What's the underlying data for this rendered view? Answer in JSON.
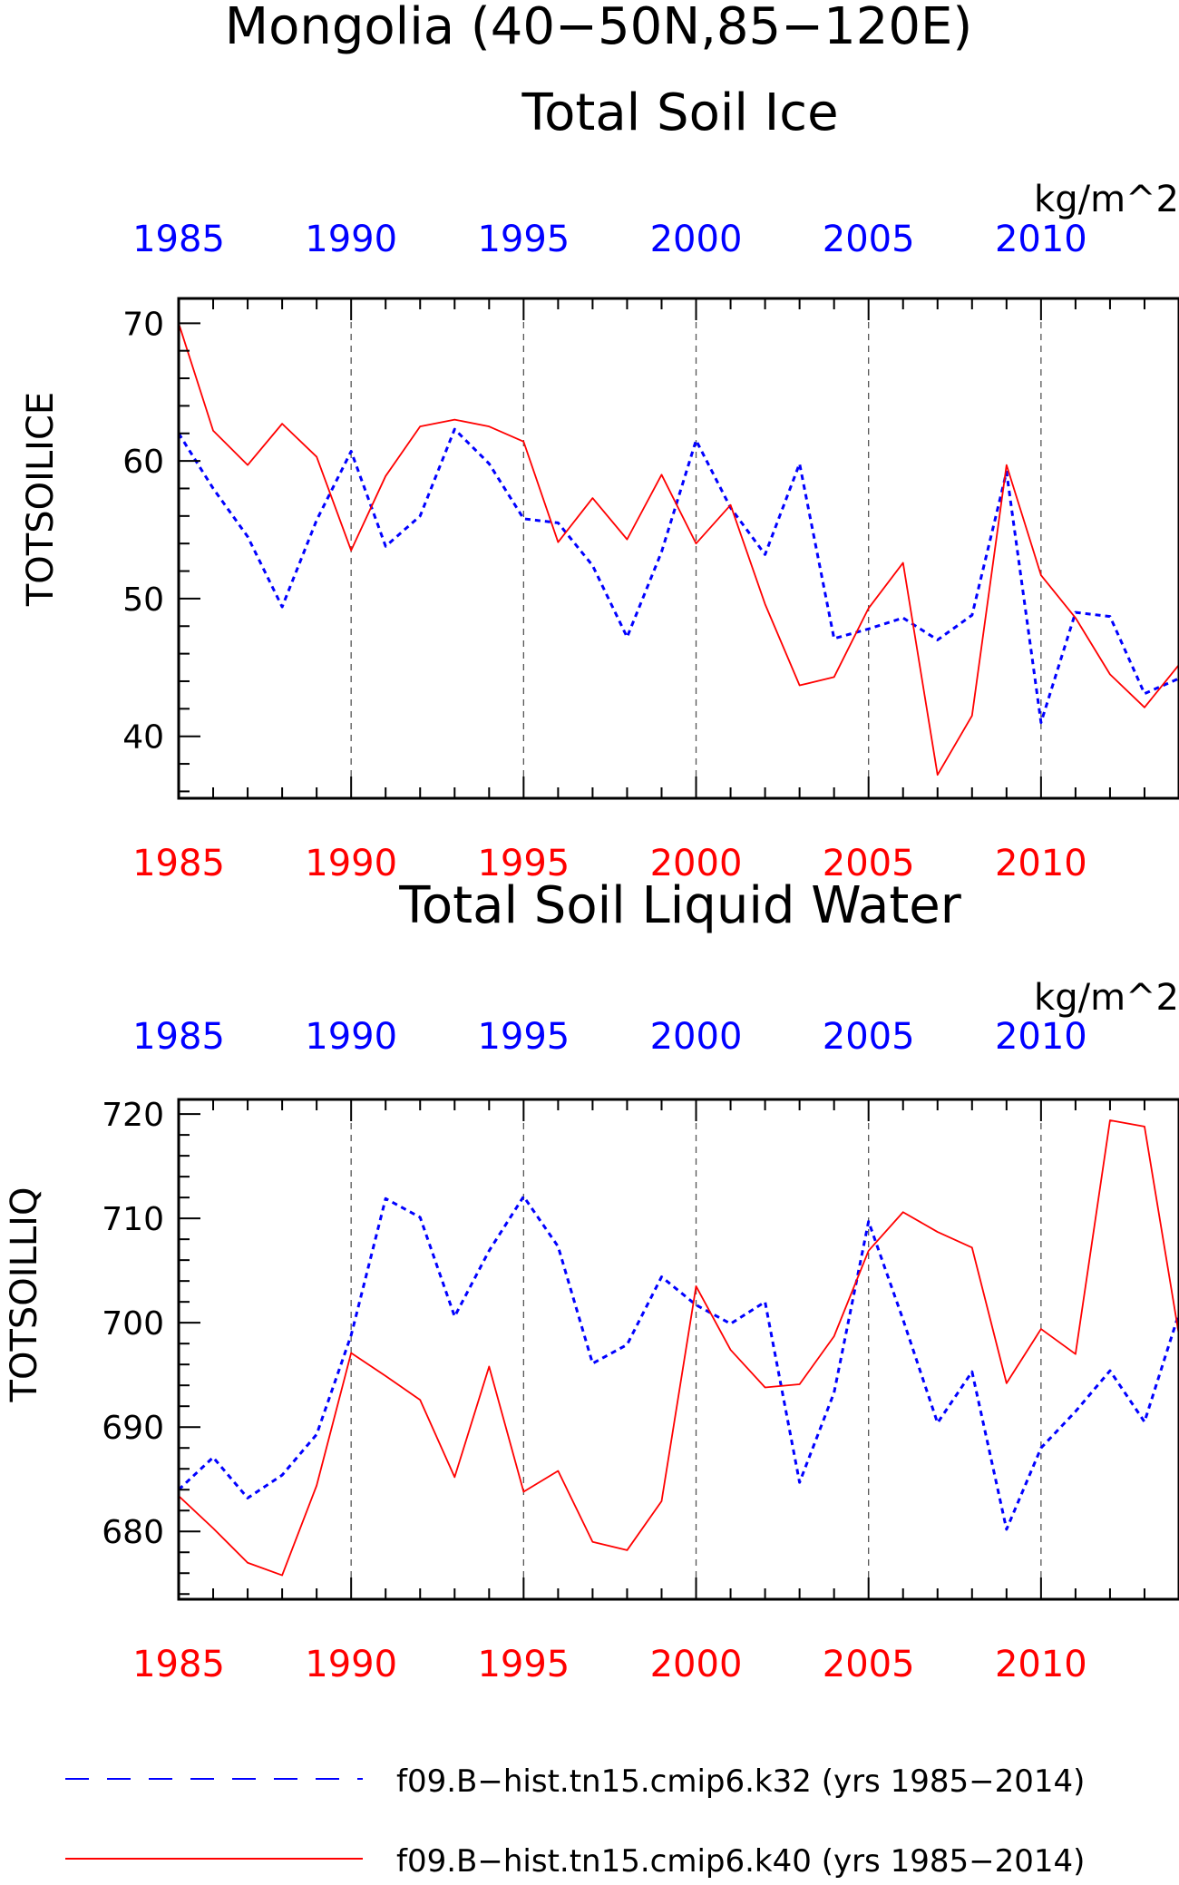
{
  "main_title": "Mongolia (40−50N,85−120E)",
  "colors": {
    "blue": "#0000ff",
    "red": "#ff0000",
    "black": "#000000",
    "grid": "#555555"
  },
  "legend": [
    {
      "label": "f09.B−hist.tn15.cmip6.k32 (yrs 1985−2014)",
      "color": "#0000ff",
      "style": "dashed"
    },
    {
      "label": "f09.B−hist.tn15.cmip6.k40 (yrs 1985−2014)",
      "color": "#ff0000",
      "style": "solid"
    }
  ],
  "chart_data": [
    {
      "type": "line",
      "title": "Total Soil Ice",
      "units": "kg/m^2",
      "ylabel": "TOTSOILICE",
      "xlim": [
        1985,
        2014
      ],
      "ylim": [
        35.5,
        71.8
      ],
      "yticks": [
        40,
        50,
        60,
        70
      ],
      "xticks": [
        1985,
        1990,
        1995,
        2000,
        2005,
        2010
      ],
      "x": [
        1985,
        1986,
        1987,
        1988,
        1989,
        1990,
        1991,
        1992,
        1993,
        1994,
        1995,
        1996,
        1997,
        1998,
        1999,
        2000,
        2001,
        2002,
        2003,
        2004,
        2005,
        2006,
        2007,
        2008,
        2009,
        2010,
        2011,
        2012,
        2013,
        2014
      ],
      "series": [
        {
          "name": "f09.B−hist.tn15.cmip6.k32",
          "color": "#0000ff",
          "style": "dashed",
          "values": [
            62.0,
            58.0,
            54.5,
            49.4,
            55.7,
            60.7,
            53.8,
            56.0,
            62.3,
            59.8,
            55.8,
            55.5,
            52.4,
            47.2,
            53.4,
            61.5,
            56.6,
            53.2,
            59.8,
            47.1,
            47.8,
            48.6,
            47.0,
            48.8,
            59.2,
            41.0,
            49.0,
            48.7,
            43.1,
            44.2
          ]
        },
        {
          "name": "f09.B−hist.tn15.cmip6.k40",
          "color": "#ff0000",
          "style": "solid",
          "values": [
            70.0,
            62.2,
            59.7,
            62.7,
            60.3,
            53.5,
            58.9,
            62.5,
            63.0,
            62.5,
            61.4,
            54.1,
            57.3,
            54.3,
            59.0,
            54.0,
            56.8,
            49.6,
            43.7,
            44.3,
            49.3,
            52.6,
            37.2,
            41.5,
            59.7,
            51.7,
            48.6,
            44.5,
            42.1,
            45.2
          ]
        }
      ]
    },
    {
      "type": "line",
      "title": "Total Soil Liquid Water",
      "units": "kg/m^2",
      "ylabel": "TOTSOILLIQ",
      "xlim": [
        1985,
        2014
      ],
      "ylim": [
        673.5,
        721.4
      ],
      "yticks": [
        680,
        690,
        700,
        710,
        720
      ],
      "xticks": [
        1985,
        1990,
        1995,
        2000,
        2005,
        2010
      ],
      "x": [
        1985,
        1986,
        1987,
        1988,
        1989,
        1990,
        1991,
        1992,
        1993,
        1994,
        1995,
        1996,
        1997,
        1998,
        1999,
        2000,
        2001,
        2002,
        2003,
        2004,
        2005,
        2006,
        2007,
        2008,
        2009,
        2010,
        2011,
        2012,
        2013,
        2014
      ],
      "series": [
        {
          "name": "f09.B−hist.tn15.cmip6.k32",
          "color": "#0000ff",
          "style": "dashed",
          "values": [
            684.0,
            687.1,
            683.2,
            685.4,
            689.3,
            698.8,
            711.9,
            710.1,
            700.6,
            706.9,
            712.1,
            707.3,
            696.1,
            697.9,
            704.4,
            701.7,
            699.9,
            702.0,
            684.7,
            693.3,
            709.7,
            700.3,
            690.4,
            695.3,
            680.2,
            688.0,
            691.5,
            695.4,
            690.5,
            700.9
          ]
        },
        {
          "name": "f09.B−hist.tn15.cmip6.k40",
          "color": "#ff0000",
          "style": "solid",
          "values": [
            683.4,
            680.3,
            677.0,
            675.8,
            684.4,
            697.1,
            694.9,
            692.6,
            685.2,
            695.8,
            683.8,
            685.8,
            679.0,
            678.2,
            682.9,
            703.5,
            697.4,
            693.8,
            694.1,
            698.7,
            706.9,
            710.6,
            708.7,
            707.2,
            694.2,
            699.4,
            697.0,
            719.4,
            718.8,
            698.8
          ]
        }
      ]
    }
  ]
}
